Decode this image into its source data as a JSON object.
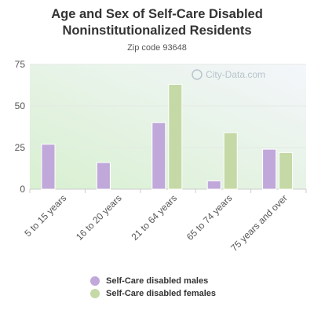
{
  "title": "Age and Sex of Self-Care Disabled Noninstitutionalized Residents",
  "subtitle": "Zip code 93648",
  "watermark": "City-Data.com",
  "colors": {
    "males": "#c0a8da",
    "females": "#c5d9a6"
  },
  "legend": {
    "males_label": "Self-Care disabled males",
    "females_label": "Self-Care disabled females"
  },
  "chart_data": {
    "type": "bar",
    "title": "Age and Sex of Self-Care Disabled Noninstitutionalized Residents",
    "subtitle": "Zip code 93648",
    "categories": [
      "5 to 15 years",
      "16 to 20 years",
      "21 to 64 years",
      "65 to 74 years",
      "75 years and over"
    ],
    "series": [
      {
        "name": "Self-Care disabled males",
        "values": [
          27,
          16,
          40,
          5,
          24
        ]
      },
      {
        "name": "Self-Care disabled females",
        "values": [
          0,
          0,
          63,
          34,
          22
        ]
      }
    ],
    "ylim": [
      0,
      75
    ],
    "yticks": [
      0,
      25,
      50,
      75
    ],
    "grid": true,
    "legend_position": "bottom"
  }
}
